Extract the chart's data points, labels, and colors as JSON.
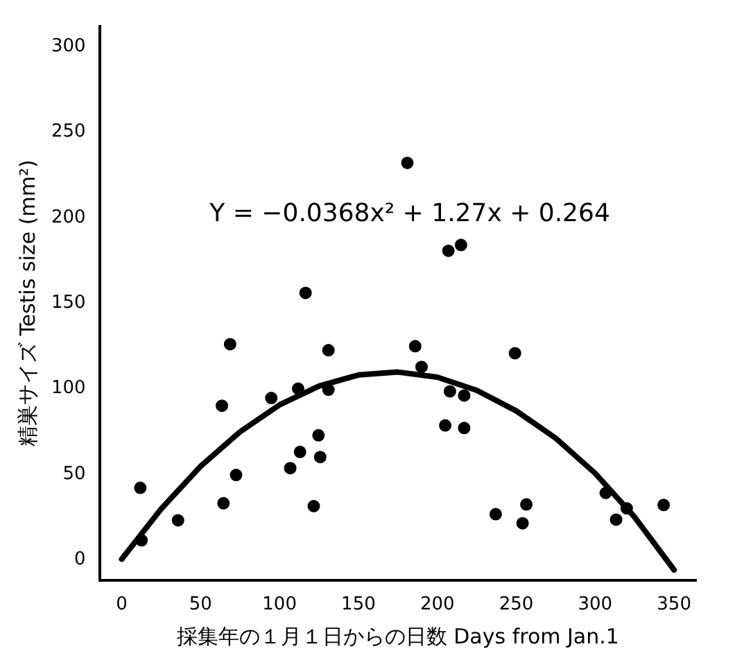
{
  "chart_data": {
    "type": "scatter",
    "xlabel": "採集年の１月１日からの日数 Days from Jan.1",
    "ylabel": "精巣サイズ Testis size (mm²)",
    "annotations": [
      "Y = −0.0368x² + 1.27x + 0.264"
    ],
    "xlim": [
      -14,
      364
    ],
    "xticks": [
      0,
      50,
      100,
      150,
      200,
      250,
      300,
      350
    ],
    "ylim": [
      -12,
      312
    ],
    "yticks": [
      0,
      50,
      100,
      150,
      200,
      250,
      300
    ],
    "grid": false,
    "legend": false,
    "marker": "circle",
    "series": [
      {
        "color": "#000000",
        "x": [
          11.8,
          12.6,
          35.7,
          63.5,
          68.7,
          64.5,
          72.5,
          94.8,
          111.8,
          116.5,
          131,
          131,
          124.7,
          113,
          125.8,
          106.8,
          121.7,
          181,
          207,
          215,
          186,
          190,
          249.2,
          208,
          217,
          205,
          217,
          237,
          256.4,
          254,
          306.7,
          320,
          313.3,
          343.4
        ],
        "values": [
          42,
          11.3,
          23,
          90,
          126,
          33,
          49.5,
          94.5,
          100,
          156,
          122.5,
          99.4,
          72.7,
          63,
          60,
          53.5,
          31.3,
          232,
          180.6,
          184,
          124.8,
          112.7,
          120.7,
          98.4,
          96,
          78.5,
          77,
          26.6,
          32.3,
          21.3,
          39,
          30,
          23.4,
          32
        ]
      },
      {
        "type": "line",
        "color": "#000000",
        "marker": "none",
        "x": [
          0,
          25,
          50,
          75,
          100,
          125,
          150,
          175,
          200,
          225,
          250,
          275,
          300,
          325,
          350
        ],
        "values": [
          0.3,
          29.7,
          54.6,
          74.8,
          90.5,
          101.5,
          108,
          109.7,
          106.7,
          99,
          87,
          71,
          50.5,
          24.9,
          -6
        ]
      }
    ]
  }
}
